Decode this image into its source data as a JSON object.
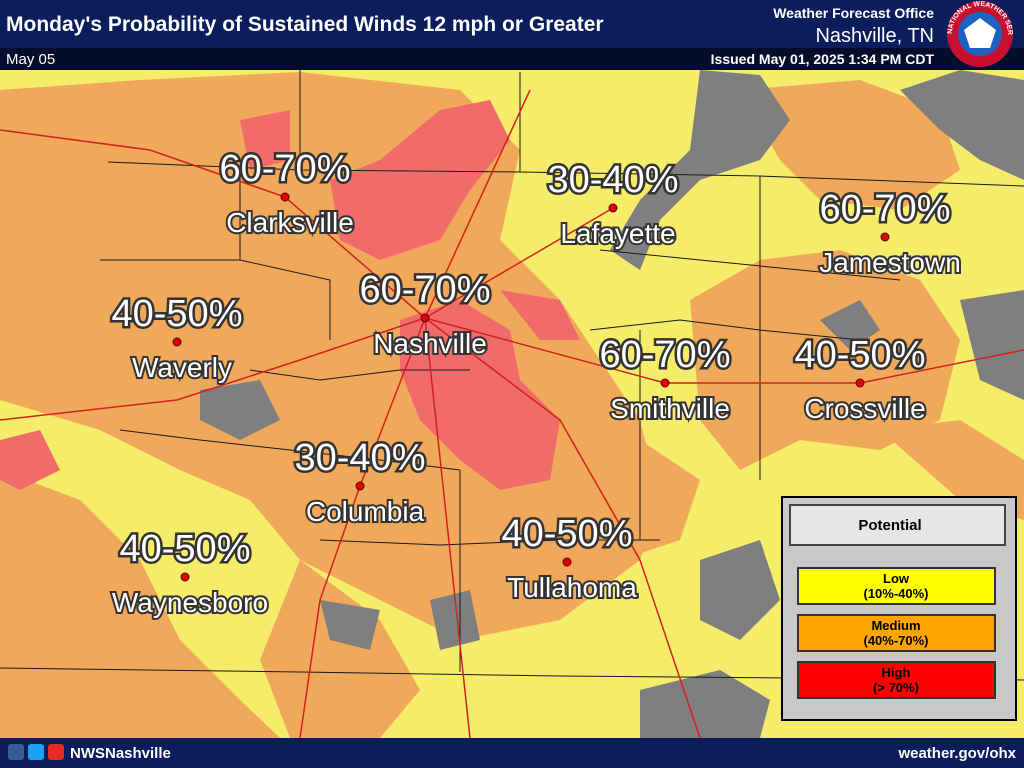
{
  "header": {
    "title": "Monday's Probability of Sustained Winds 12 mph or Greater",
    "date": "May 05",
    "office": "Weather Forecast Office",
    "location": "Nashville, TN",
    "issued": "Issued May 01, 2025 1:34 PM CDT",
    "logo_text": "NATIONAL WEATHER SERVICE"
  },
  "cities": [
    {
      "name": "Clarksville",
      "range": "60-70%"
    },
    {
      "name": "Lafayette",
      "range": "30-40%"
    },
    {
      "name": "Jamestown",
      "range": "60-70%"
    },
    {
      "name": "Nashville",
      "range": "60-70%"
    },
    {
      "name": "Waverly",
      "range": "40-50%"
    },
    {
      "name": "Smithville",
      "range": "60-70%"
    },
    {
      "name": "Crossville",
      "range": "40-50%"
    },
    {
      "name": "Columbia",
      "range": "30-40%"
    },
    {
      "name": "Tullahoma",
      "range": "40-50%"
    },
    {
      "name": "Waynesboro",
      "range": "40-50%"
    }
  ],
  "legend": {
    "title": "Potential",
    "items": [
      {
        "label": "Low",
        "range": "(10%-40%)"
      },
      {
        "label": "Medium",
        "range": "(40%-70%)"
      },
      {
        "label": "High",
        "range": "(> 70%)"
      }
    ]
  },
  "footer": {
    "social": "NWSNashville",
    "url": "weather.gov/ohx"
  }
}
